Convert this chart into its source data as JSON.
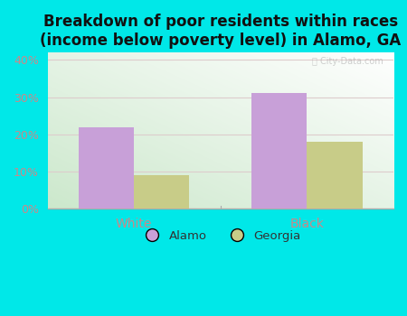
{
  "title": "Breakdown of poor residents within races\n(income below poverty level) in Alamo, GA",
  "categories": [
    "White",
    "Black"
  ],
  "alamo_values": [
    22,
    31
  ],
  "georgia_values": [
    9,
    18
  ],
  "alamo_color": "#c8a0d8",
  "georgia_color": "#c8cc88",
  "bar_width": 0.32,
  "ylim": [
    0,
    42
  ],
  "yticks": [
    0,
    10,
    20,
    30,
    40
  ],
  "ytick_labels": [
    "0%",
    "10%",
    "20%",
    "30%",
    "40%"
  ],
  "tick_color": "#cc8888",
  "title_fontsize": 12,
  "background_color": "#00e8e8",
  "plot_bg_color_top_right": "#ffffff",
  "plot_bg_color_bottom_left": "#cce8cc",
  "legend_labels": [
    "Alamo",
    "Georgia"
  ],
  "legend_text_color": "#333333",
  "watermark": "City-Data.com",
  "grid_color": "#ddcccc",
  "bottom_line_color": "#aaaaaa",
  "divider_color": "#aaaaaa"
}
